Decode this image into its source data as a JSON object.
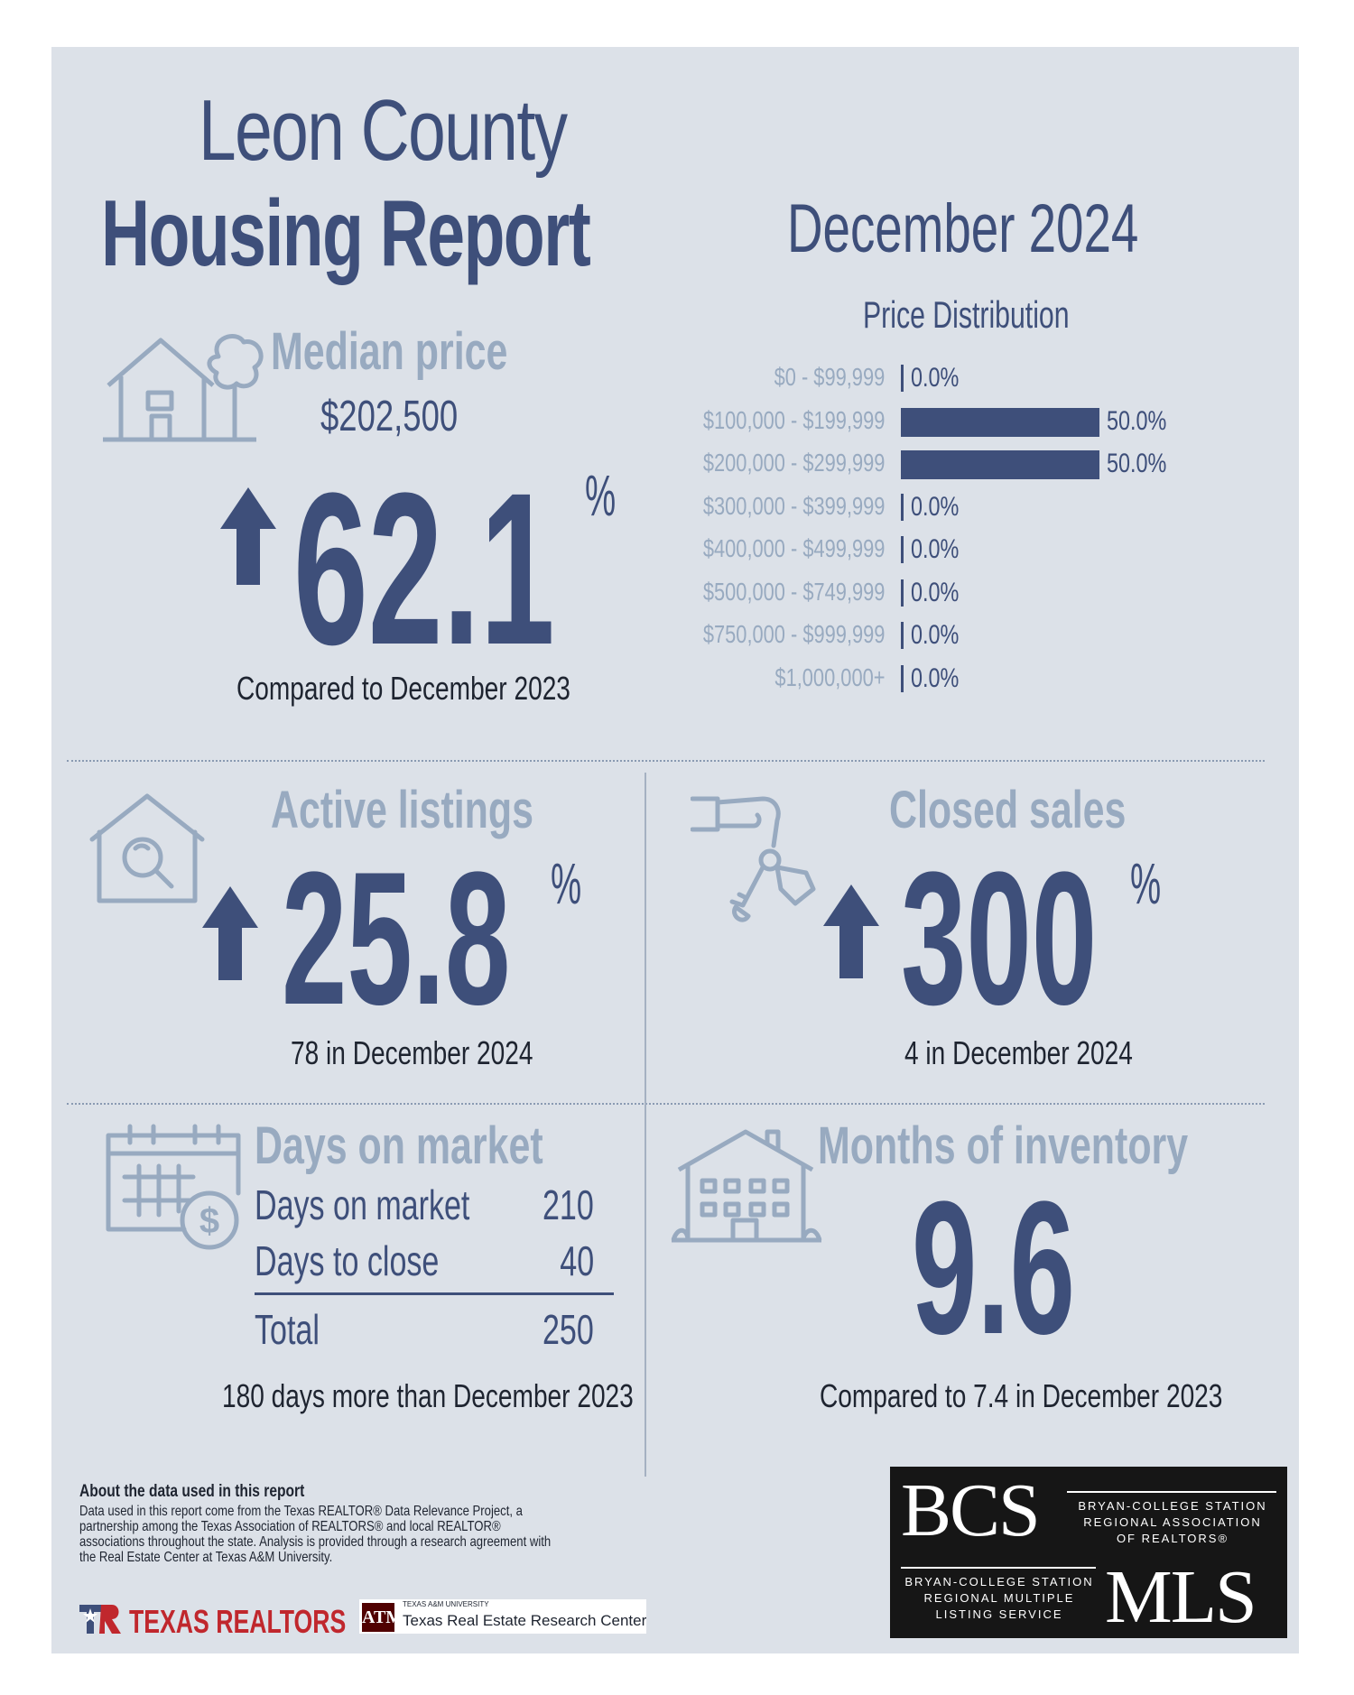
{
  "header": {
    "title_line1": "Leon County",
    "title_line2": "Housing Report",
    "month_year": "December 2024"
  },
  "median_price": {
    "heading": "Median price",
    "value": "$202,500",
    "change": "62.1",
    "unit": "%",
    "direction": "up",
    "caption": "Compared to December 2023",
    "icon": "house-with-tree-icon"
  },
  "price_distribution": {
    "title": "Price Distribution",
    "rows": [
      {
        "range": "$0 - $99,999",
        "percent": 0.0,
        "label": "0.0%"
      },
      {
        "range": "$100,000 - $199,999",
        "percent": 50.0,
        "label": "50.0%"
      },
      {
        "range": "$200,000 - $299,999",
        "percent": 50.0,
        "label": "50.0%"
      },
      {
        "range": "$300,000 - $399,999",
        "percent": 0.0,
        "label": "0.0%"
      },
      {
        "range": "$400,000 - $499,999",
        "percent": 0.0,
        "label": "0.0%"
      },
      {
        "range": "$500,000 - $749,999",
        "percent": 0.0,
        "label": "0.0%"
      },
      {
        "range": "$750,000 - $999,999",
        "percent": 0.0,
        "label": "0.0%"
      },
      {
        "range": "$1,000,000+",
        "percent": 0.0,
        "label": "0.0%"
      }
    ]
  },
  "active_listings": {
    "heading": "Active listings",
    "change": "25.8",
    "unit": "%",
    "direction": "up",
    "caption": "78 in December 2024",
    "icon": "house-magnifier-icon"
  },
  "closed_sales": {
    "heading": "Closed sales",
    "change": "300",
    "unit": "%",
    "direction": "up",
    "caption": "4 in December 2024",
    "icon": "hand-with-keys-icon"
  },
  "days_on_market": {
    "heading": "Days on market",
    "rows": [
      {
        "label": "Days on market",
        "value": "210"
      },
      {
        "label": "Days to close",
        "value": "40"
      }
    ],
    "total_label": "Total",
    "total_value": "250",
    "caption": "180 days more than December 2023",
    "icon": "calendar-dollar-icon"
  },
  "months_inventory": {
    "heading": "Months of inventory",
    "value": "9.6",
    "caption": "Compared to 7.4 in December 2023",
    "icon": "apartment-building-icon"
  },
  "about": {
    "heading": "About the data used in this report",
    "body": "Data used in this report come from the Texas REALTOR® Data Relevance Project, a partnership among the Texas Association of REALTORS® and local REALTOR® associations throughout the state. Analysis is provided through a research agreement with the Real Estate Center at Texas A&M University."
  },
  "logos": {
    "texas_realtors": "TEXAS REALTORS",
    "tamu_small": "TEXAS A&M UNIVERSITY",
    "tamu_center": "Texas Real Estate Research Center",
    "bcs": "BCS",
    "bcs_assoc": [
      "BRYAN-COLLEGE STATION",
      "REGIONAL ASSOCIATION",
      "OF REALTORS®"
    ],
    "mls": "MLS",
    "mls_service": [
      "BRYAN-COLLEGE STATION",
      "REGIONAL MULTIPLE",
      "LISTING SERVICE"
    ]
  },
  "colors": {
    "navy": "#3e4f7a",
    "steel": "#98aac0",
    "panel": "#dce1e8",
    "realtors_red": "#c0272d",
    "aggie_maroon": "#500000"
  }
}
